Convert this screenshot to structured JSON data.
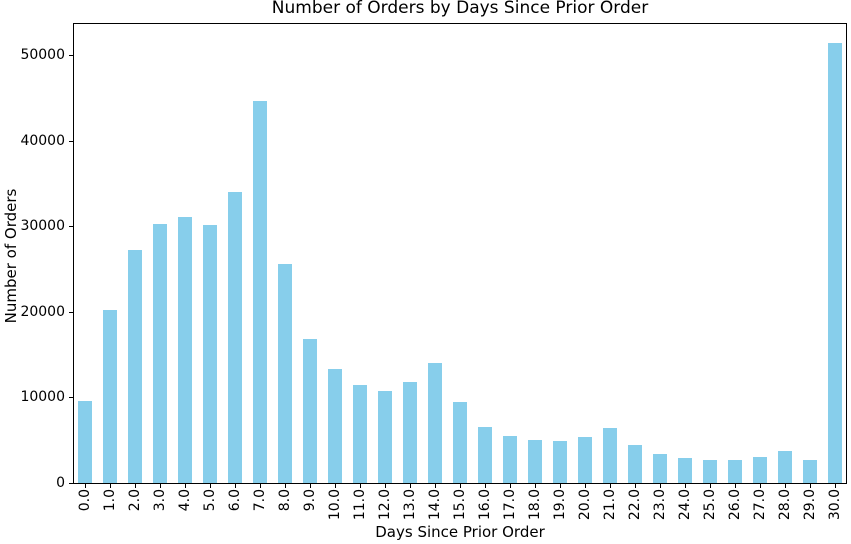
{
  "colors": {
    "background": "#ffffff",
    "bar": "#87CEEB",
    "axis": "#000000",
    "text": "#000000"
  },
  "chart_data": {
    "type": "bar",
    "title": "Number of Orders by Days Since Prior Order",
    "xlabel": "Days Since Prior Order",
    "ylabel": "Number of Orders",
    "categories": [
      "0.0",
      "1.0",
      "2.0",
      "3.0",
      "4.0",
      "5.0",
      "6.0",
      "7.0",
      "8.0",
      "9.0",
      "10.0",
      "11.0",
      "12.0",
      "13.0",
      "14.0",
      "15.0",
      "16.0",
      "17.0",
      "18.0",
      "19.0",
      "20.0",
      "21.0",
      "22.0",
      "23.0",
      "24.0",
      "25.0",
      "26.0",
      "27.0",
      "28.0",
      "29.0",
      "30.0"
    ],
    "values": [
      9600,
      20200,
      27250,
      30300,
      31100,
      30150,
      34000,
      44650,
      25600,
      16800,
      13300,
      11500,
      10800,
      11850,
      14000,
      9500,
      6600,
      5500,
      5000,
      4900,
      5400,
      6450,
      4500,
      3350,
      2950,
      2650,
      2650,
      3000,
      3750,
      2650,
      51500
    ],
    "bar_color": "#87CEEB",
    "ylim": [
      0,
      53900
    ],
    "yticks": [
      0,
      10000,
      20000,
      30000,
      40000,
      50000
    ],
    "ytick_labels": [
      "0",
      "10000",
      "20000",
      "30000",
      "40000",
      "50000"
    ],
    "xtick_rotation": 90,
    "grid": false,
    "legend": null
  }
}
